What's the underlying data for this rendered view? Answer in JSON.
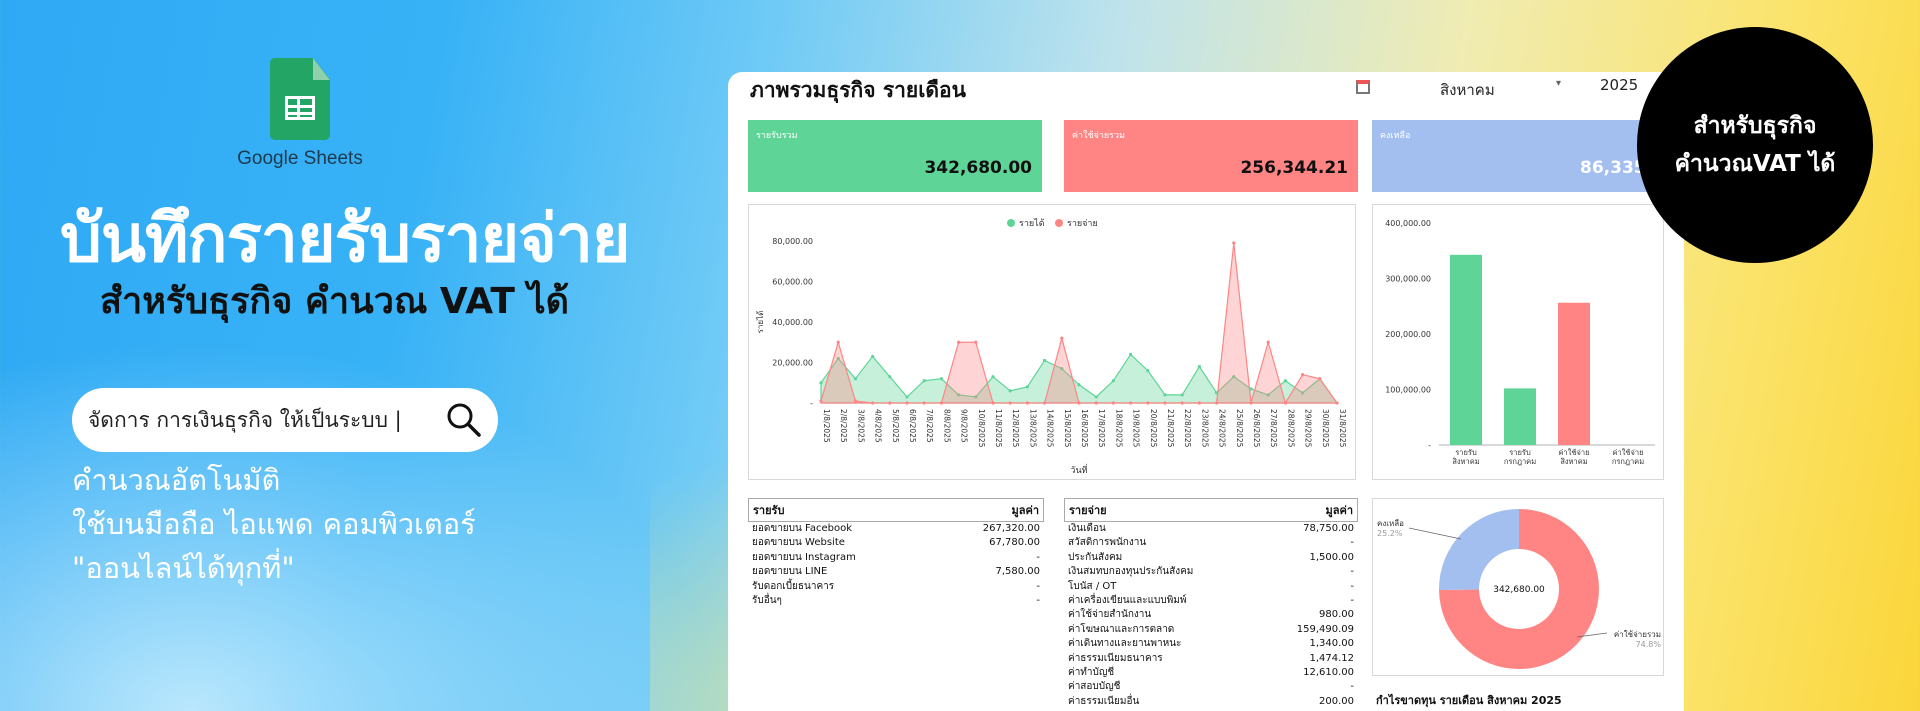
{
  "brand": {
    "logo_name": "Google Sheets"
  },
  "hero": {
    "title": "บันทึกรายรับรายจ่าย",
    "subtitle": "สำหรับธุรกิจ คำนวณ VAT ได้",
    "search_text": "จัดการ การเงินธุรกิจ ให้เป็นระบบ |",
    "features": [
      "คำนวณอัตโนมัติ",
      "ใช้บนมือถือ ไอแพด คอมพิวเตอร์",
      "\"ออนไลน์ได้ทุกที่\""
    ]
  },
  "badge": {
    "line1": "สำหรับธุรกิจ",
    "line2": "คำนวณVAT ได้"
  },
  "dashboard": {
    "title": "ภาพรวมธุรกิจ รายเดือน",
    "month": "สิงหาคม",
    "dropdown_arrow": "▾",
    "year": "2025",
    "cards": {
      "income_label": "รายรับรวม",
      "income_value": "342,680.00",
      "expense_label": "ค่าใช้จ่ายรวม",
      "expense_value": "256,344.21",
      "balance_label": "คงเหลือ",
      "balance_value": "86,335."
    },
    "income_table": {
      "header_left": "รายรับ",
      "header_right": "มูลค่า",
      "rows": [
        {
          "name": "ยอดขายบน Facebook",
          "value": "267,320.00"
        },
        {
          "name": "ยอดขายบน Website",
          "value": "67,780.00"
        },
        {
          "name": "ยอดขายบน Instagram",
          "value": "-"
        },
        {
          "name": "ยอดขายบน LINE",
          "value": "7,580.00"
        },
        {
          "name": "รับดอกเบี้ยธนาคาร",
          "value": "-"
        },
        {
          "name": "รับอื่นๆ",
          "value": "-"
        }
      ]
    },
    "expense_table": {
      "header_left": "รายจ่าย",
      "header_right": "มูลค่า",
      "rows": [
        {
          "name": "เงินเดือน",
          "value": "78,750.00"
        },
        {
          "name": "สวัสดิการพนักงาน",
          "value": "-"
        },
        {
          "name": "ประกันสังคม",
          "value": "1,500.00"
        },
        {
          "name": "เงินสมทบกองทุนประกันสังคม",
          "value": "-"
        },
        {
          "name": "โบนัส / OT",
          "value": "-"
        },
        {
          "name": "ค่าเครื่องเขียนและแบบพิมพ์",
          "value": "-"
        },
        {
          "name": "ค่าใช้จ่ายสำนักงาน",
          "value": "980.00"
        },
        {
          "name": "ค่าโฆษณาและการตลาด",
          "value": "159,490.09"
        },
        {
          "name": "ค่าเดินทางและยานพาหนะ",
          "value": "1,340.00"
        },
        {
          "name": "ค่าธรรมเนียมธนาคาร",
          "value": "1,474.12"
        },
        {
          "name": "ค่าทำบัญชี",
          "value": "12,610.00"
        },
        {
          "name": "ค่าสอบบัญชี",
          "value": "-"
        },
        {
          "name": "ค่าธรรมเนียมอื่น",
          "value": "200.00"
        }
      ]
    },
    "profit_title": "กำไรขาดทุน รายเดือน สิงหาคม 2025"
  },
  "chart_data": [
    {
      "type": "area",
      "title": "",
      "legend": [
        "รายได้",
        "รายจ่าย"
      ],
      "ylabel": "รายได้",
      "xlabel": "วันที่",
      "ylim": [
        0,
        80000
      ],
      "yticks": [
        "80,000.00",
        "60,000.00",
        "40,000.00",
        "20,000.00",
        "-"
      ],
      "colors": [
        "#5fd497",
        "#ff8585"
      ],
      "x": [
        "1/8/2025",
        "2/8/2025",
        "3/8/2025",
        "4/8/2025",
        "5/8/2025",
        "6/8/2025",
        "7/8/2025",
        "8/8/2025",
        "9/8/2025",
        "10/8/2025",
        "11/8/2025",
        "12/8/2025",
        "13/8/2025",
        "14/8/2025",
        "15/8/2025",
        "16/8/2025",
        "17/8/2025",
        "18/8/2025",
        "19/8/2025",
        "20/8/2025",
        "21/8/2025",
        "22/8/2025",
        "23/8/2025",
        "24/8/2025",
        "25/8/2025",
        "26/8/2025",
        "27/8/2025",
        "28/8/2025",
        "29/8/2025",
        "30/8/2025",
        "31/8/2025"
      ],
      "series": [
        {
          "name": "รายได้",
          "values": [
            10000,
            22000,
            12000,
            23000,
            13000,
            3000,
            11000,
            12000,
            4000,
            3000,
            13000,
            6000,
            8000,
            21000,
            17000,
            9000,
            3000,
            11000,
            24000,
            16000,
            4000,
            4000,
            18000,
            5000,
            13000,
            7000,
            4000,
            11000,
            5000,
            12000,
            0
          ]
        },
        {
          "name": "รายจ่าย",
          "values": [
            1000,
            30000,
            1000,
            0,
            0,
            0,
            0,
            0,
            30000,
            30000,
            0,
            0,
            0,
            0,
            32000,
            0,
            0,
            0,
            0,
            0,
            0,
            0,
            0,
            0,
            79000,
            0,
            30000,
            0,
            14000,
            12000,
            0
          ]
        }
      ]
    },
    {
      "type": "bar",
      "categories": [
        "รายรับ สิงหาคม",
        "รายรับ กรกฎาคม",
        "ค่าใช้จ่าย สิงหาคม",
        "ค่าใช้จ่าย กรกฎาคม"
      ],
      "values": [
        342680,
        102000,
        256344.21,
        0
      ],
      "colors": [
        "#5fd497",
        "#5fd497",
        "#ff8585",
        "#ff8585"
      ],
      "ylim": [
        0,
        400000
      ],
      "yticks": [
        "400,000.00",
        "300,000.00",
        "200,000.00",
        "100,000.00",
        "-"
      ]
    },
    {
      "type": "pie",
      "center_label": "342,680.00",
      "slices": [
        {
          "name": "คงเหลือ",
          "percent": 25.2,
          "pct_label": "25.2%",
          "color": "#a3bff0"
        },
        {
          "name": "ค่าใช้จ่ายรวม",
          "percent": 74.8,
          "pct_label": "74.8%",
          "color": "#ff8585"
        }
      ]
    }
  ]
}
